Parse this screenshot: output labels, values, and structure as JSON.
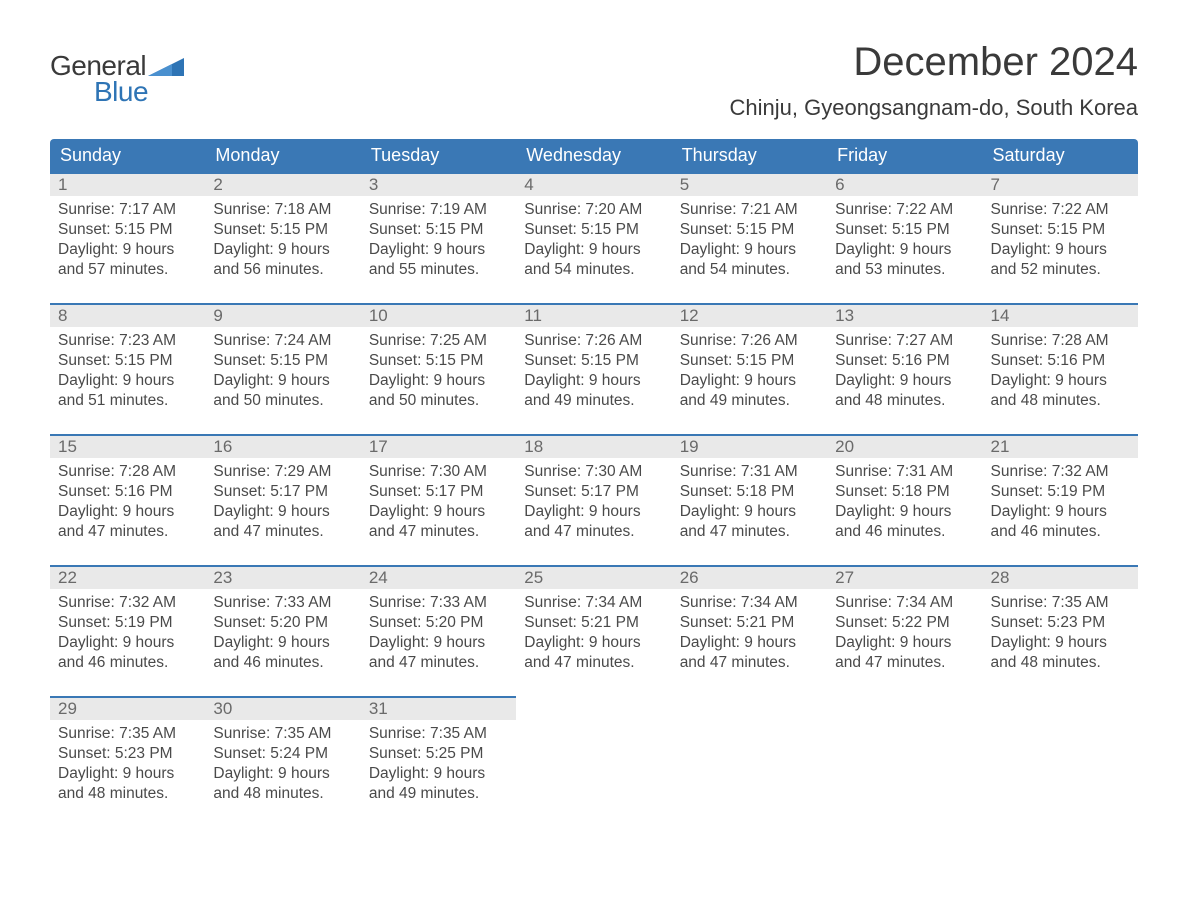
{
  "brand": {
    "general": "General",
    "blue": "Blue",
    "flag_color": "#2e74b5"
  },
  "title": "December 2024",
  "location": "Chinju, Gyeongsangnam-do, South Korea",
  "colors": {
    "header_bg": "#3a78b5",
    "header_text": "#ffffff",
    "daynum_bg": "#e9e9e9",
    "daynum_text": "#6a6a6a",
    "daynum_border": "#3a78b5",
    "body_text": "#4a4a4a",
    "page_bg": "#ffffff",
    "title_text": "#3a3a3a",
    "brand_blue": "#2e74b5"
  },
  "fonts": {
    "title_size_pt": 30,
    "location_size_pt": 16,
    "dayheader_size_pt": 14,
    "daynum_size_pt": 13,
    "body_size_pt": 12
  },
  "day_headers": [
    "Sunday",
    "Monday",
    "Tuesday",
    "Wednesday",
    "Thursday",
    "Friday",
    "Saturday"
  ],
  "weeks": [
    [
      {
        "n": "1",
        "sunrise": "Sunrise: 7:17 AM",
        "sunset": "Sunset: 5:15 PM",
        "d1": "Daylight: 9 hours",
        "d2": "and 57 minutes."
      },
      {
        "n": "2",
        "sunrise": "Sunrise: 7:18 AM",
        "sunset": "Sunset: 5:15 PM",
        "d1": "Daylight: 9 hours",
        "d2": "and 56 minutes."
      },
      {
        "n": "3",
        "sunrise": "Sunrise: 7:19 AM",
        "sunset": "Sunset: 5:15 PM",
        "d1": "Daylight: 9 hours",
        "d2": "and 55 minutes."
      },
      {
        "n": "4",
        "sunrise": "Sunrise: 7:20 AM",
        "sunset": "Sunset: 5:15 PM",
        "d1": "Daylight: 9 hours",
        "d2": "and 54 minutes."
      },
      {
        "n": "5",
        "sunrise": "Sunrise: 7:21 AM",
        "sunset": "Sunset: 5:15 PM",
        "d1": "Daylight: 9 hours",
        "d2": "and 54 minutes."
      },
      {
        "n": "6",
        "sunrise": "Sunrise: 7:22 AM",
        "sunset": "Sunset: 5:15 PM",
        "d1": "Daylight: 9 hours",
        "d2": "and 53 minutes."
      },
      {
        "n": "7",
        "sunrise": "Sunrise: 7:22 AM",
        "sunset": "Sunset: 5:15 PM",
        "d1": "Daylight: 9 hours",
        "d2": "and 52 minutes."
      }
    ],
    [
      {
        "n": "8",
        "sunrise": "Sunrise: 7:23 AM",
        "sunset": "Sunset: 5:15 PM",
        "d1": "Daylight: 9 hours",
        "d2": "and 51 minutes."
      },
      {
        "n": "9",
        "sunrise": "Sunrise: 7:24 AM",
        "sunset": "Sunset: 5:15 PM",
        "d1": "Daylight: 9 hours",
        "d2": "and 50 minutes."
      },
      {
        "n": "10",
        "sunrise": "Sunrise: 7:25 AM",
        "sunset": "Sunset: 5:15 PM",
        "d1": "Daylight: 9 hours",
        "d2": "and 50 minutes."
      },
      {
        "n": "11",
        "sunrise": "Sunrise: 7:26 AM",
        "sunset": "Sunset: 5:15 PM",
        "d1": "Daylight: 9 hours",
        "d2": "and 49 minutes."
      },
      {
        "n": "12",
        "sunrise": "Sunrise: 7:26 AM",
        "sunset": "Sunset: 5:15 PM",
        "d1": "Daylight: 9 hours",
        "d2": "and 49 minutes."
      },
      {
        "n": "13",
        "sunrise": "Sunrise: 7:27 AM",
        "sunset": "Sunset: 5:16 PM",
        "d1": "Daylight: 9 hours",
        "d2": "and 48 minutes."
      },
      {
        "n": "14",
        "sunrise": "Sunrise: 7:28 AM",
        "sunset": "Sunset: 5:16 PM",
        "d1": "Daylight: 9 hours",
        "d2": "and 48 minutes."
      }
    ],
    [
      {
        "n": "15",
        "sunrise": "Sunrise: 7:28 AM",
        "sunset": "Sunset: 5:16 PM",
        "d1": "Daylight: 9 hours",
        "d2": "and 47 minutes."
      },
      {
        "n": "16",
        "sunrise": "Sunrise: 7:29 AM",
        "sunset": "Sunset: 5:17 PM",
        "d1": "Daylight: 9 hours",
        "d2": "and 47 minutes."
      },
      {
        "n": "17",
        "sunrise": "Sunrise: 7:30 AM",
        "sunset": "Sunset: 5:17 PM",
        "d1": "Daylight: 9 hours",
        "d2": "and 47 minutes."
      },
      {
        "n": "18",
        "sunrise": "Sunrise: 7:30 AM",
        "sunset": "Sunset: 5:17 PM",
        "d1": "Daylight: 9 hours",
        "d2": "and 47 minutes."
      },
      {
        "n": "19",
        "sunrise": "Sunrise: 7:31 AM",
        "sunset": "Sunset: 5:18 PM",
        "d1": "Daylight: 9 hours",
        "d2": "and 47 minutes."
      },
      {
        "n": "20",
        "sunrise": "Sunrise: 7:31 AM",
        "sunset": "Sunset: 5:18 PM",
        "d1": "Daylight: 9 hours",
        "d2": "and 46 minutes."
      },
      {
        "n": "21",
        "sunrise": "Sunrise: 7:32 AM",
        "sunset": "Sunset: 5:19 PM",
        "d1": "Daylight: 9 hours",
        "d2": "and 46 minutes."
      }
    ],
    [
      {
        "n": "22",
        "sunrise": "Sunrise: 7:32 AM",
        "sunset": "Sunset: 5:19 PM",
        "d1": "Daylight: 9 hours",
        "d2": "and 46 minutes."
      },
      {
        "n": "23",
        "sunrise": "Sunrise: 7:33 AM",
        "sunset": "Sunset: 5:20 PM",
        "d1": "Daylight: 9 hours",
        "d2": "and 46 minutes."
      },
      {
        "n": "24",
        "sunrise": "Sunrise: 7:33 AM",
        "sunset": "Sunset: 5:20 PM",
        "d1": "Daylight: 9 hours",
        "d2": "and 47 minutes."
      },
      {
        "n": "25",
        "sunrise": "Sunrise: 7:34 AM",
        "sunset": "Sunset: 5:21 PM",
        "d1": "Daylight: 9 hours",
        "d2": "and 47 minutes."
      },
      {
        "n": "26",
        "sunrise": "Sunrise: 7:34 AM",
        "sunset": "Sunset: 5:21 PM",
        "d1": "Daylight: 9 hours",
        "d2": "and 47 minutes."
      },
      {
        "n": "27",
        "sunrise": "Sunrise: 7:34 AM",
        "sunset": "Sunset: 5:22 PM",
        "d1": "Daylight: 9 hours",
        "d2": "and 47 minutes."
      },
      {
        "n": "28",
        "sunrise": "Sunrise: 7:35 AM",
        "sunset": "Sunset: 5:23 PM",
        "d1": "Daylight: 9 hours",
        "d2": "and 48 minutes."
      }
    ],
    [
      {
        "n": "29",
        "sunrise": "Sunrise: 7:35 AM",
        "sunset": "Sunset: 5:23 PM",
        "d1": "Daylight: 9 hours",
        "d2": "and 48 minutes."
      },
      {
        "n": "30",
        "sunrise": "Sunrise: 7:35 AM",
        "sunset": "Sunset: 5:24 PM",
        "d1": "Daylight: 9 hours",
        "d2": "and 48 minutes."
      },
      {
        "n": "31",
        "sunrise": "Sunrise: 7:35 AM",
        "sunset": "Sunset: 5:25 PM",
        "d1": "Daylight: 9 hours",
        "d2": "and 49 minutes."
      },
      null,
      null,
      null,
      null
    ]
  ]
}
